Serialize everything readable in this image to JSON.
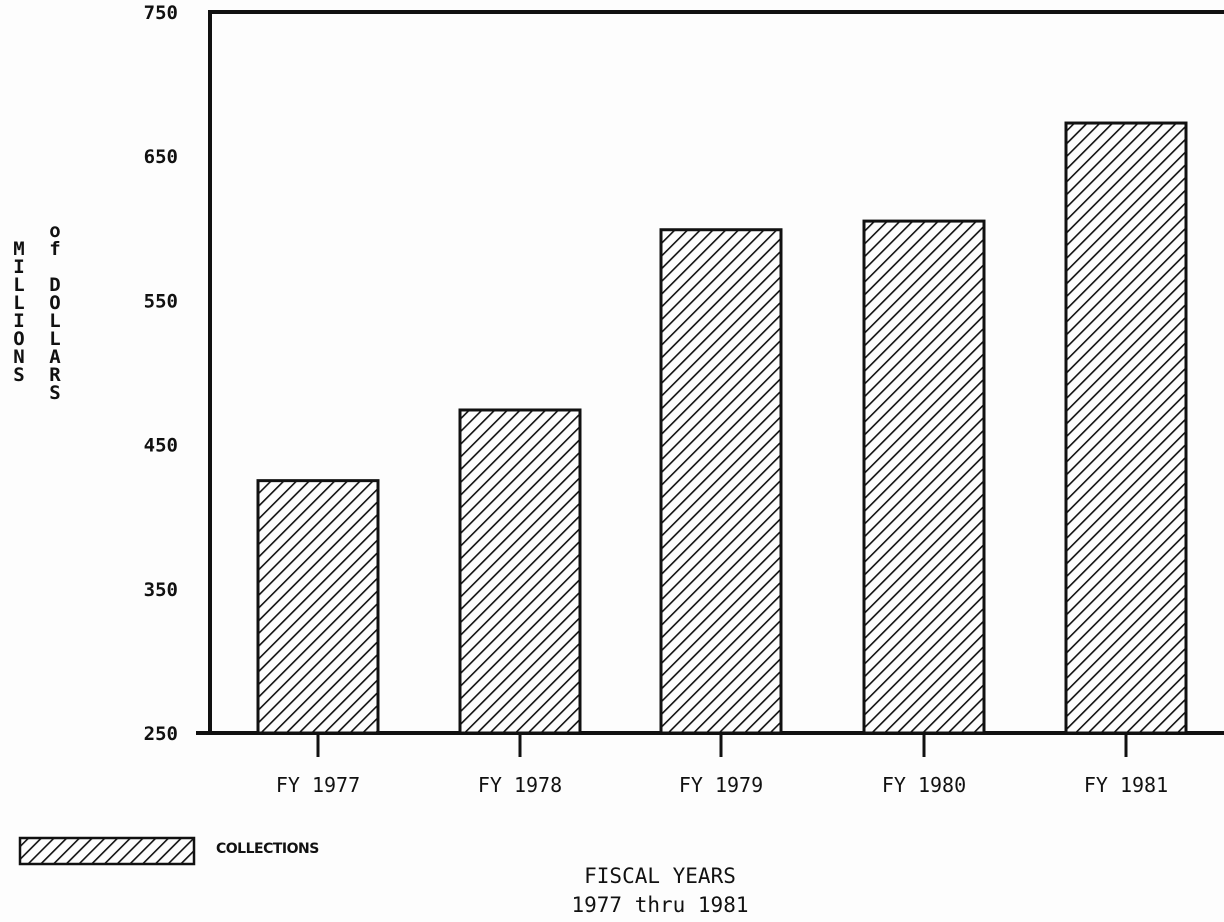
{
  "chart_data": {
    "type": "bar",
    "categories": [
      "FY 1977",
      "FY 1978",
      "FY 1979",
      "FY 1980",
      "FY 1981"
    ],
    "series": [
      {
        "name": "COLLECTIONS",
        "values": [
          425,
          474,
          599,
          605,
          673
        ]
      }
    ],
    "ylim": [
      250,
      750
    ],
    "yticks": [
      "750",
      "650",
      "550",
      "450",
      "350",
      "250"
    ],
    "ylabel_line1": "MILLIONS",
    "ylabel_line2": "of DOLLARS",
    "xlabel_line1": "FISCAL YEARS",
    "xlabel_line2": "1977 thru 1981",
    "legend_label": "COLLECTIONS",
    "legend_placement": "bottom-left",
    "grid": false,
    "bar_fill": "diagonal-hatch",
    "colors": {
      "ink": "#111111",
      "background": "#fdfdfd"
    }
  }
}
